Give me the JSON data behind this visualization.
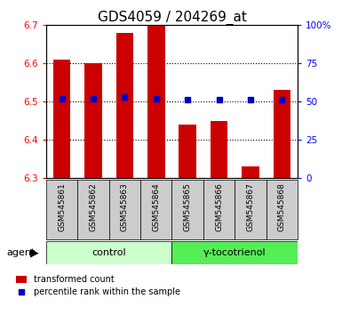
{
  "title": "GDS4059 / 204269_at",
  "samples": [
    "GSM545861",
    "GSM545862",
    "GSM545863",
    "GSM545864",
    "GSM545865",
    "GSM545866",
    "GSM545867",
    "GSM545868"
  ],
  "red_values": [
    6.61,
    6.6,
    6.68,
    6.7,
    6.44,
    6.45,
    6.33,
    6.53
  ],
  "blue_values": [
    52,
    52,
    53,
    52,
    51,
    51,
    51,
    51
  ],
  "blue_present": [
    true,
    true,
    true,
    true,
    true,
    true,
    true,
    true
  ],
  "y_min": 6.3,
  "y_max": 6.7,
  "y_ticks": [
    6.3,
    6.4,
    6.5,
    6.6,
    6.7
  ],
  "y2_ticks": [
    0,
    25,
    50,
    75,
    100
  ],
  "y2_labels": [
    "0",
    "25",
    "50",
    "75",
    "100%"
  ],
  "control_label": "control",
  "treatment_label": "γ-tocotrienol",
  "agent_label": "agent",
  "legend_red": "transformed count",
  "legend_blue": "percentile rank within the sample",
  "bar_color": "#cc0000",
  "blue_color": "#0000cc",
  "bar_width": 0.55,
  "base_value": 6.3,
  "control_bg": "#ccffcc",
  "treatment_bg": "#55ee55",
  "sample_bg": "#cccccc",
  "title_fontsize": 11,
  "tick_fontsize": 7.5,
  "sample_fontsize": 6.5,
  "group_fontsize": 8,
  "legend_fontsize": 7
}
